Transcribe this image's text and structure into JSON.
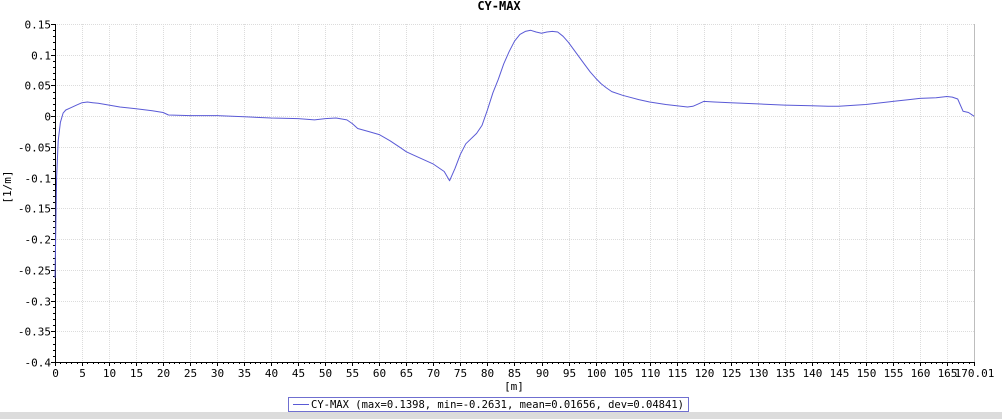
{
  "chart_data": {
    "type": "line",
    "title": "CY-MAX",
    "xlabel": "[m]",
    "ylabel": "[1/m]",
    "xlim": [
      0,
      170.01
    ],
    "ylim": [
      -0.4,
      0.15
    ],
    "x_ticks": [
      0,
      5,
      10,
      15,
      20,
      25,
      30,
      35,
      40,
      45,
      50,
      55,
      60,
      65,
      70,
      75,
      80,
      85,
      90,
      95,
      100,
      105,
      110,
      115,
      120,
      125,
      130,
      135,
      140,
      145,
      150,
      155,
      160,
      165,
      170.01
    ],
    "x_tick_labels": [
      "0",
      "5",
      "10",
      "15",
      "20",
      "25",
      "30",
      "35",
      "40",
      "45",
      "50",
      "55",
      "60",
      "65",
      "70",
      "75",
      "80",
      "85",
      "90",
      "95",
      "100",
      "105",
      "110",
      "115",
      "120",
      "125",
      "130",
      "135",
      "140",
      "145",
      "150",
      "155",
      "160",
      "165",
      "170.01"
    ],
    "y_ticks": [
      0.15,
      0.1,
      0.05,
      0,
      -0.05,
      -0.1,
      -0.15,
      -0.2,
      -0.25,
      -0.3,
      -0.35,
      -0.4
    ],
    "y_tick_labels": [
      "0.15",
      "0.1",
      "0.05",
      "0",
      "-0.05",
      "-0.1",
      "-0.15",
      "-0.2",
      "-0.25",
      "-0.3",
      "-0.35",
      "-0.4"
    ],
    "grid": true,
    "legend_position": "bottom-center",
    "series_color": "#5a5ad6",
    "series": [
      {
        "name": "CY-MAX (max=0.1398, min=-0.2631, mean=0.01656, dev=0.04841)",
        "x": [
          0,
          0.3,
          0.6,
          1,
          1.5,
          2,
          3,
          4,
          5,
          6,
          7,
          8,
          10,
          12,
          15,
          18,
          20,
          21,
          25,
          30,
          35,
          40,
          45,
          48,
          50,
          52,
          54,
          55,
          56,
          58,
          60,
          62,
          64,
          65,
          66,
          68,
          70,
          72,
          73,
          74,
          75,
          76,
          78,
          79,
          80,
          81,
          82,
          83,
          84,
          85,
          86,
          87,
          88,
          89,
          90,
          91,
          92,
          93,
          94,
          95,
          96,
          97,
          98,
          99,
          100,
          101,
          102,
          103,
          105,
          108,
          110,
          113,
          115,
          117,
          118,
          119,
          120,
          122,
          125,
          130,
          135,
          140,
          143,
          145,
          150,
          155,
          158,
          160,
          163,
          165,
          166,
          167,
          168,
          169,
          170.01
        ],
        "y": [
          -0.2631,
          -0.1,
          -0.04,
          -0.01,
          0.005,
          0.01,
          0.014,
          0.018,
          0.022,
          0.023,
          0.022,
          0.021,
          0.018,
          0.015,
          0.012,
          0.009,
          0.006,
          0.002,
          0.001,
          0.001,
          -0.001,
          -0.003,
          -0.004,
          -0.006,
          -0.004,
          -0.003,
          -0.006,
          -0.012,
          -0.02,
          -0.025,
          -0.03,
          -0.04,
          -0.052,
          -0.058,
          -0.062,
          -0.07,
          -0.078,
          -0.09,
          -0.105,
          -0.085,
          -0.062,
          -0.045,
          -0.028,
          -0.015,
          0.01,
          0.038,
          0.06,
          0.085,
          0.105,
          0.122,
          0.133,
          0.138,
          0.1398,
          0.137,
          0.135,
          0.137,
          0.138,
          0.137,
          0.13,
          0.12,
          0.108,
          0.096,
          0.084,
          0.072,
          0.062,
          0.053,
          0.046,
          0.04,
          0.034,
          0.027,
          0.023,
          0.019,
          0.017,
          0.015,
          0.016,
          0.02,
          0.024,
          0.023,
          0.022,
          0.02,
          0.018,
          0.017,
          0.016,
          0.016,
          0.019,
          0.024,
          0.027,
          0.029,
          0.03,
          0.032,
          0.031,
          0.028,
          0.008,
          0.006,
          0.0
        ]
      }
    ]
  }
}
